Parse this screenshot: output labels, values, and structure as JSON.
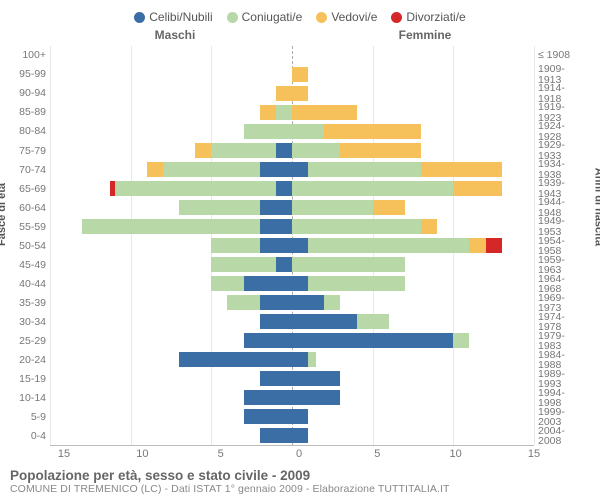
{
  "legend": [
    {
      "label": "Celibi/Nubili",
      "color": "#3a6ea5"
    },
    {
      "label": "Coniugati/e",
      "color": "#b8d8a7"
    },
    {
      "label": "Vedovi/e",
      "color": "#f6c15b"
    },
    {
      "label": "Divorziati/e",
      "color": "#d62728"
    }
  ],
  "gender": {
    "m": "Maschi",
    "f": "Femmine"
  },
  "ylabels": {
    "left": "Fasce di età",
    "right": "Anni di nascita"
  },
  "xmax": 15,
  "xticks": [
    15,
    10,
    5,
    0,
    5,
    10,
    15
  ],
  "rows": [
    {
      "age": "100+",
      "birth": "≤ 1908",
      "m": {
        "c": 0,
        "co": 0,
        "v": 0,
        "d": 0
      },
      "f": {
        "c": 0,
        "co": 0,
        "v": 0,
        "d": 0
      }
    },
    {
      "age": "95-99",
      "birth": "1909-1913",
      "m": {
        "c": 0,
        "co": 0,
        "v": 0,
        "d": 0
      },
      "f": {
        "c": 0,
        "co": 0,
        "v": 1,
        "d": 0
      }
    },
    {
      "age": "90-94",
      "birth": "1914-1918",
      "m": {
        "c": 0,
        "co": 0,
        "v": 1,
        "d": 0
      },
      "f": {
        "c": 0,
        "co": 0,
        "v": 1,
        "d": 0
      }
    },
    {
      "age": "85-89",
      "birth": "1919-1923",
      "m": {
        "c": 0,
        "co": 1,
        "v": 1,
        "d": 0
      },
      "f": {
        "c": 0,
        "co": 0,
        "v": 4,
        "d": 0
      }
    },
    {
      "age": "80-84",
      "birth": "1924-1928",
      "m": {
        "c": 0,
        "co": 3,
        "v": 0,
        "d": 0
      },
      "f": {
        "c": 0,
        "co": 2,
        "v": 6,
        "d": 0
      }
    },
    {
      "age": "75-79",
      "birth": "1929-1933",
      "m": {
        "c": 1,
        "co": 4,
        "v": 1,
        "d": 0
      },
      "f": {
        "c": 0,
        "co": 3,
        "v": 5,
        "d": 0
      }
    },
    {
      "age": "70-74",
      "birth": "1934-1938",
      "m": {
        "c": 2,
        "co": 6,
        "v": 1,
        "d": 0
      },
      "f": {
        "c": 1,
        "co": 7,
        "v": 5,
        "d": 0
      }
    },
    {
      "age": "65-69",
      "birth": "1939-1943",
      "m": {
        "c": 1,
        "co": 10,
        "v": 0,
        "d": 0.3
      },
      "f": {
        "c": 0,
        "co": 10,
        "v": 3,
        "d": 0
      }
    },
    {
      "age": "60-64",
      "birth": "1944-1948",
      "m": {
        "c": 2,
        "co": 5,
        "v": 0,
        "d": 0
      },
      "f": {
        "c": 0,
        "co": 5,
        "v": 2,
        "d": 0
      }
    },
    {
      "age": "55-59",
      "birth": "1949-1953",
      "m": {
        "c": 2,
        "co": 11,
        "v": 0,
        "d": 0
      },
      "f": {
        "c": 0,
        "co": 8,
        "v": 1,
        "d": 0
      }
    },
    {
      "age": "50-54",
      "birth": "1954-1958",
      "m": {
        "c": 2,
        "co": 3,
        "v": 0,
        "d": 0
      },
      "f": {
        "c": 1,
        "co": 10,
        "v": 1,
        "d": 1
      }
    },
    {
      "age": "45-49",
      "birth": "1959-1963",
      "m": {
        "c": 1,
        "co": 4,
        "v": 0,
        "d": 0
      },
      "f": {
        "c": 0,
        "co": 7,
        "v": 0,
        "d": 0
      }
    },
    {
      "age": "40-44",
      "birth": "1964-1968",
      "m": {
        "c": 3,
        "co": 2,
        "v": 0,
        "d": 0
      },
      "f": {
        "c": 1,
        "co": 6,
        "v": 0,
        "d": 0
      }
    },
    {
      "age": "35-39",
      "birth": "1969-1973",
      "m": {
        "c": 2,
        "co": 2,
        "v": 0,
        "d": 0
      },
      "f": {
        "c": 2,
        "co": 1,
        "v": 0,
        "d": 0
      }
    },
    {
      "age": "30-34",
      "birth": "1974-1978",
      "m": {
        "c": 2,
        "co": 0,
        "v": 0,
        "d": 0
      },
      "f": {
        "c": 4,
        "co": 2,
        "v": 0,
        "d": 0
      }
    },
    {
      "age": "25-29",
      "birth": "1979-1983",
      "m": {
        "c": 3,
        "co": 0,
        "v": 0,
        "d": 0
      },
      "f": {
        "c": 10,
        "co": 1,
        "v": 0,
        "d": 0
      }
    },
    {
      "age": "20-24",
      "birth": "1984-1988",
      "m": {
        "c": 7,
        "co": 0,
        "v": 0,
        "d": 0
      },
      "f": {
        "c": 1,
        "co": 0.5,
        "v": 0,
        "d": 0
      }
    },
    {
      "age": "15-19",
      "birth": "1989-1993",
      "m": {
        "c": 2,
        "co": 0,
        "v": 0,
        "d": 0
      },
      "f": {
        "c": 3,
        "co": 0,
        "v": 0,
        "d": 0
      }
    },
    {
      "age": "10-14",
      "birth": "1994-1998",
      "m": {
        "c": 3,
        "co": 0,
        "v": 0,
        "d": 0
      },
      "f": {
        "c": 3,
        "co": 0,
        "v": 0,
        "d": 0
      }
    },
    {
      "age": "5-9",
      "birth": "1999-2003",
      "m": {
        "c": 3,
        "co": 0,
        "v": 0,
        "d": 0
      },
      "f": {
        "c": 1,
        "co": 0,
        "v": 0,
        "d": 0
      }
    },
    {
      "age": "0-4",
      "birth": "2004-2008",
      "m": {
        "c": 2,
        "co": 0,
        "v": 0,
        "d": 0
      },
      "f": {
        "c": 1,
        "co": 0,
        "v": 0,
        "d": 0
      }
    }
  ],
  "colors": {
    "celibi": "#3a6ea5",
    "coniugati": "#b8d8a7",
    "vedovi": "#f6c15b",
    "divorziati": "#d62728",
    "grid": "#e8e8e8",
    "zero": "#aaaaaa"
  },
  "footer": {
    "title": "Popolazione per età, sesso e stato civile - 2009",
    "subtitle": "COMUNE DI TREMENICO (LC) - Dati ISTAT 1° gennaio 2009 - Elaborazione TUTTITALIA.IT"
  }
}
